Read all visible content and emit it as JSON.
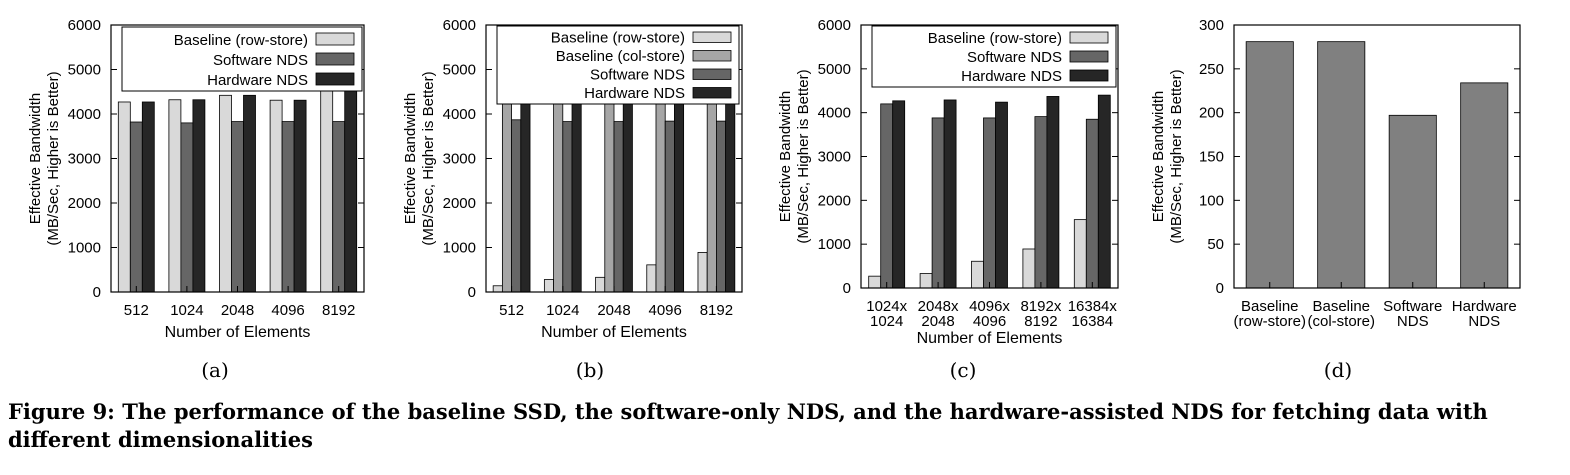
{
  "caption": "Figure 9: The performance of the baseline SSD, the software-only NDS, and the hardware-assisted NDS for fetching data with different dimensionalities",
  "series_colors": {
    "Baseline (row-store)": "#d9d9d9",
    "Baseline (col-store)": "#a6a6a6",
    "Software NDS": "#666666",
    "Hardware NDS": "#262626"
  },
  "chart_data": [
    {
      "label": "(a)",
      "type": "bar",
      "ylabel": "Effective Bandwidth\n(MB/Sec, Higher is Better)",
      "xlabel": "Number of Elements",
      "ylim": [
        0,
        6000
      ],
      "yticks": [
        0,
        1000,
        2000,
        3000,
        4000,
        5000,
        6000
      ],
      "categories": [
        "512",
        "1024",
        "2048",
        "4096",
        "8192"
      ],
      "legend": "top",
      "series": [
        {
          "name": "Baseline (row-store)",
          "values": [
            4270,
            4320,
            4420,
            4310,
            4560
          ]
        },
        {
          "name": "Software NDS",
          "values": [
            3820,
            3800,
            3830,
            3830,
            3830
          ]
        },
        {
          "name": "Hardware NDS",
          "values": [
            4270,
            4320,
            4420,
            4310,
            4560
          ]
        }
      ]
    },
    {
      "label": "(b)",
      "type": "bar",
      "ylabel": "Effective Bandwidth\n(MB/Sec, Higher is Better)",
      "xlabel": "Number of Elements",
      "ylim": [
        0,
        6000
      ],
      "yticks": [
        0,
        1000,
        2000,
        3000,
        4000,
        5000,
        6000
      ],
      "categories": [
        "512",
        "1024",
        "2048",
        "4096",
        "8192"
      ],
      "legend": "top",
      "series": [
        {
          "name": "Baseline (row-store)",
          "values": [
            140,
            280,
            330,
            610,
            890
          ]
        },
        {
          "name": "Baseline (col-store)",
          "values": [
            4270,
            4370,
            4470,
            4400,
            4510
          ]
        },
        {
          "name": "Software NDS",
          "values": [
            3870,
            3830,
            3830,
            3840,
            3840
          ]
        },
        {
          "name": "Hardware NDS",
          "values": [
            4270,
            4370,
            4470,
            4400,
            4510
          ]
        }
      ]
    },
    {
      "label": "(c)",
      "type": "bar",
      "ylabel": "Effective Bandwidth\n(MB/Sec, Higher is Better)",
      "xlabel": "Number of Elements",
      "ylim": [
        0,
        6000
      ],
      "yticks": [
        0,
        1000,
        2000,
        3000,
        4000,
        5000,
        6000
      ],
      "categories": [
        "1024x\n1024",
        "2048x\n2048",
        "4096x\n4096",
        "8192x\n8192",
        "16384x\n16384"
      ],
      "legend": "top",
      "series": [
        {
          "name": "Baseline (row-store)",
          "values": [
            270,
            330,
            610,
            890,
            1560
          ]
        },
        {
          "name": "Software NDS",
          "values": [
            4200,
            3880,
            3880,
            3910,
            3850
          ]
        },
        {
          "name": "Hardware NDS",
          "values": [
            4270,
            4290,
            4240,
            4370,
            4400
          ]
        }
      ]
    },
    {
      "label": "(d)",
      "type": "bar",
      "ylabel": "Effective Bandwidth\n(MB/Sec, Higher is Better)",
      "xlabel": "",
      "ylim": [
        0,
        300
      ],
      "yticks": [
        0,
        50,
        100,
        150,
        200,
        250,
        300
      ],
      "categories": [
        "Baseline\n(row-store)",
        "Baseline\n(col-store)",
        "Software\nNDS",
        "Hardware\nNDS"
      ],
      "legend": "none",
      "values": [
        281,
        281,
        197,
        234
      ]
    }
  ]
}
